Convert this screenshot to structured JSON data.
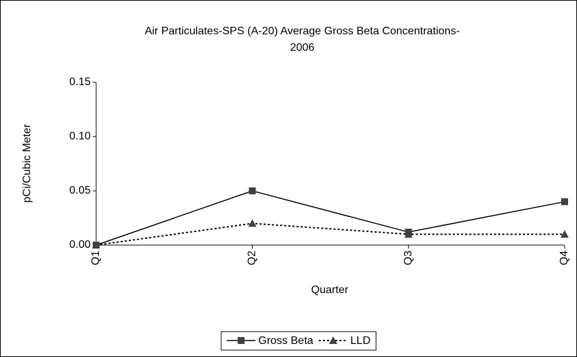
{
  "chart_data": {
    "type": "line",
    "title": [
      "Air Particulates-SPS (A-20)    Average Gross Beta Concentrations-",
      "2006"
    ],
    "x_label": "Quarter",
    "y_label": "pCi/Cubic Meter",
    "categories": [
      "Q1",
      "Q2",
      "Q3",
      "Q4"
    ],
    "series": [
      {
        "name": "Gross Beta",
        "color": "#000000",
        "line_style": "solid",
        "marker": "square",
        "values": [
          0,
          0.05,
          0.012,
          0.04
        ]
      },
      {
        "name": "LLD",
        "color": "#000000",
        "line_style": "dotted",
        "marker": "triangle",
        "values": [
          0,
          0.02,
          0.01,
          0.01
        ]
      }
    ],
    "ylim": [
      0,
      0.15
    ],
    "yticks": [
      {
        "value": 0,
        "label": "0.00"
      },
      0.05,
      {
        "value": 0.1,
        "label": "0.10"
      },
      0.15
    ],
    "grid": false,
    "legend": "bottom"
  }
}
